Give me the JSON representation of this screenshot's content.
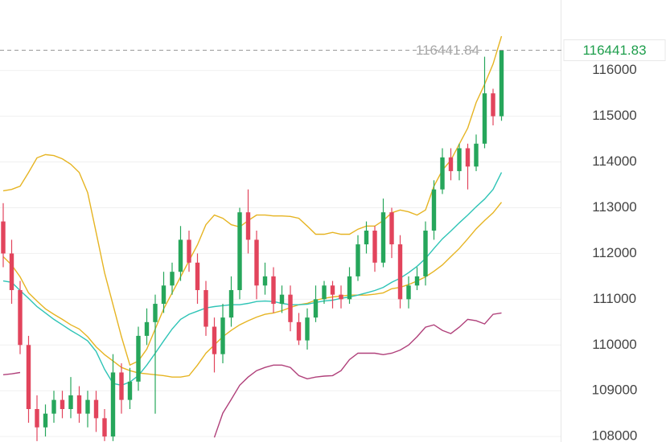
{
  "chart_data": {
    "type": "candlestick",
    "ylim": [
      107880,
      117540
    ],
    "yticks": [
      108000,
      109000,
      110000,
      111000,
      112000,
      113000,
      114000,
      115000,
      116000
    ],
    "grid": true,
    "up_color": "#26a65b",
    "down_color": "#e2445c",
    "last_price": 116441.83,
    "last_price_color": "#1e9e4c",
    "marker_value": 116441.84,
    "candles": {
      "open": [
        112700,
        112000,
        111200,
        110000,
        108600,
        108200,
        108500,
        108800,
        108600,
        108900,
        108500,
        108800,
        108400,
        108000,
        109400,
        108800,
        109200,
        110200,
        110500,
        110900,
        111300,
        111600,
        112300,
        111800,
        111200,
        110400,
        109800,
        110600,
        111200,
        112900,
        112300,
        111300,
        111500,
        110900,
        111100,
        110500,
        110100,
        110600,
        111000,
        111300,
        111100,
        111000,
        111500,
        112200,
        112500,
        111800,
        112900,
        112200,
        111000,
        111300,
        111500,
        112500,
        113400,
        114100,
        113800,
        114300,
        113900,
        114400,
        115500,
        115000
      ],
      "high": [
        113100,
        112300,
        111400,
        110200,
        108900,
        108700,
        109000,
        109000,
        109300,
        109100,
        109000,
        109000,
        108600,
        109800,
        109600,
        109500,
        110400,
        110800,
        111100,
        111600,
        111800,
        112600,
        112500,
        112000,
        111400,
        110600,
        110900,
        111500,
        113000,
        113400,
        112500,
        111800,
        111700,
        111300,
        111300,
        110700,
        110800,
        111300,
        111400,
        111400,
        111300,
        111700,
        112400,
        112700,
        112600,
        113200,
        113000,
        112400,
        111500,
        111700,
        112700,
        113600,
        114300,
        114300,
        114400,
        114400,
        114600,
        116300,
        115600,
        116441.83
      ],
      "low": [
        111700,
        110900,
        109800,
        108300,
        107900,
        108000,
        108300,
        108400,
        108400,
        108300,
        108200,
        108100,
        107900,
        107900,
        108500,
        108600,
        109000,
        110000,
        108500,
        110700,
        111100,
        111400,
        111600,
        110900,
        110200,
        109400,
        109600,
        110400,
        111000,
        112000,
        111000,
        111100,
        110700,
        110700,
        110300,
        110000,
        109900,
        110500,
        110900,
        110800,
        110800,
        110900,
        111400,
        112000,
        111600,
        111700,
        111900,
        110800,
        110800,
        111200,
        111300,
        112300,
        113300,
        113600,
        113600,
        113400,
        113800,
        114300,
        114800,
        114900
      ],
      "close": [
        112000,
        111200,
        110000,
        108600,
        108200,
        108500,
        108800,
        108600,
        108900,
        108500,
        108800,
        108400,
        108000,
        109400,
        108800,
        109200,
        110200,
        110500,
        110900,
        111300,
        111600,
        112300,
        111800,
        111200,
        110400,
        109800,
        110600,
        111200,
        112900,
        112300,
        111300,
        111500,
        110900,
        111100,
        110500,
        110100,
        110600,
        111000,
        111300,
        111100,
        111000,
        111500,
        112200,
        112500,
        111800,
        112900,
        112200,
        111000,
        111300,
        111500,
        112500,
        113400,
        114100,
        113800,
        114300,
        113900,
        114400,
        115500,
        115000,
        116441.83
      ]
    },
    "lines": [
      {
        "color": "#e6b422",
        "values": [
          113370,
          113400,
          113470,
          113770,
          114090,
          114160,
          114140,
          114070,
          113950,
          113770,
          113330,
          112460,
          111580,
          110880,
          110180,
          109560,
          109650,
          109910,
          110350,
          110790,
          111140,
          111490,
          111840,
          112190,
          112630,
          112840,
          112770,
          112630,
          112580,
          112720,
          112840,
          112840,
          112820,
          112820,
          112810,
          112770,
          112600,
          112420,
          112420,
          112460,
          112420,
          112420,
          112530,
          112600,
          112600,
          112720,
          112890,
          112950,
          112910,
          112840,
          112950,
          113470,
          113820,
          114040,
          114390,
          114740,
          115300,
          115700,
          116140,
          116750
        ]
      },
      {
        "color": "#e6b422",
        "values": [
          111930,
          111750,
          111490,
          111140,
          110960,
          110790,
          110670,
          110560,
          110440,
          110350,
          110180,
          109960,
          109790,
          109650,
          109510,
          109440,
          109390,
          109370,
          109350,
          109330,
          109300,
          109300,
          109330,
          109560,
          109820,
          110000,
          110180,
          110320,
          110440,
          110530,
          110610,
          110670,
          110700,
          110750,
          110820,
          110880,
          110910,
          110980,
          111020,
          111050,
          111070,
          111090,
          111090,
          111090,
          111110,
          111140,
          111230,
          111260,
          111320,
          111400,
          111490,
          111610,
          111750,
          111930,
          112110,
          112320,
          112540,
          112720,
          112890,
          113120
        ]
      },
      {
        "color": "#2ec4b6",
        "values": [
          111400,
          111370,
          111190,
          111020,
          110840,
          110700,
          110560,
          110440,
          110320,
          110210,
          110090,
          109860,
          109470,
          109160,
          109120,
          109190,
          109330,
          109560,
          109820,
          110090,
          110350,
          110560,
          110670,
          110740,
          110810,
          110840,
          110860,
          110880,
          110880,
          110910,
          110950,
          110960,
          110950,
          110910,
          110880,
          110880,
          110890,
          110930,
          110960,
          110980,
          111020,
          111050,
          111090,
          111140,
          111190,
          111260,
          111370,
          111460,
          111580,
          111720,
          111890,
          112110,
          112320,
          112490,
          112670,
          112840,
          113020,
          113190,
          113400,
          113770
        ]
      },
      {
        "color": "#b0407a",
        "values": [
          109350,
          109370,
          109400,
          null,
          null,
          null,
          null,
          null,
          null,
          null,
          null,
          null,
          null,
          null,
          null,
          null,
          null,
          null,
          null,
          null,
          null,
          null,
          null,
          null,
          null,
          107980,
          108510,
          108810,
          109120,
          109300,
          109440,
          109510,
          109560,
          109560,
          109510,
          109330,
          109260,
          109300,
          109320,
          109330,
          109440,
          109680,
          109820,
          109820,
          109820,
          109790,
          109820,
          109890,
          110000,
          110180,
          110390,
          110440,
          110320,
          110250,
          110390,
          110560,
          110530,
          110460,
          110670,
          110700
        ]
      }
    ]
  }
}
